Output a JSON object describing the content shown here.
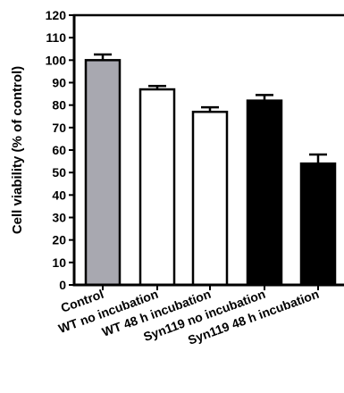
{
  "chart_data": {
    "type": "bar",
    "title": "",
    "xlabel": "",
    "ylabel": "Cell viability (% of control)",
    "ylim": [
      0,
      120
    ],
    "yticks": [
      0,
      10,
      20,
      30,
      40,
      50,
      60,
      70,
      80,
      90,
      100,
      110,
      120
    ],
    "grid": false,
    "categories": [
      "Control",
      "WT no incubation",
      "WT 48 h incubation",
      "Syn119 no incubation",
      "Syn119 48 h incubation"
    ],
    "values": [
      100,
      87,
      77,
      82,
      54
    ],
    "errors": [
      2.5,
      1.5,
      2,
      2.5,
      4
    ],
    "bar_colors": [
      "#a8a8b0",
      "#ffffff",
      "#ffffff",
      "#000000",
      "#000000"
    ],
    "edge_color": "#000000"
  }
}
